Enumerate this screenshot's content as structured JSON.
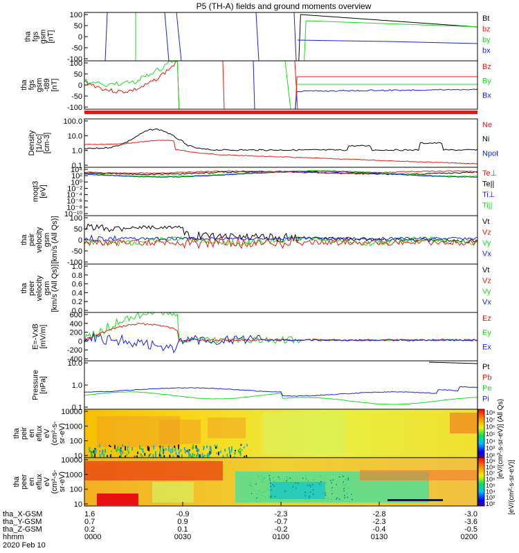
{
  "title": "P5 (TH-A) fields and ground moments overview",
  "date_label": "2020 Feb 10",
  "colors": {
    "black": "#000000",
    "red": "#e8160c",
    "green": "#14dc14",
    "blue": "#1420dc"
  },
  "chart_data": [
    {
      "id": "fgs",
      "type": "line",
      "ylabel": [
        "tha",
        "fgs",
        "gsm",
        "[nT]"
      ],
      "yticks": [
        "100",
        "50",
        "0",
        "-50",
        "-100"
      ],
      "ylim": [
        -100,
        100
      ],
      "legend": [
        {
          "label": "Bt",
          "color": "black"
        },
        {
          "label": "bz",
          "color": "red"
        },
        {
          "label": "by",
          "color": "green"
        },
        {
          "label": "bx",
          "color": "blue"
        }
      ]
    },
    {
      "id": "fgs_dsl",
      "type": "line",
      "ylabel": [
        "tha",
        "fgs",
        "gsm",
        "-t89",
        "[nT]"
      ],
      "yticks": [
        "100",
        "50",
        "0",
        "-50",
        "-100"
      ],
      "ylim": [
        -100,
        100
      ],
      "legend": [
        {
          "label": "Bz",
          "color": "red"
        },
        {
          "label": "By",
          "color": "green"
        },
        {
          "label": "Bx",
          "color": "blue"
        }
      ]
    },
    {
      "id": "density",
      "type": "line",
      "ylabel": [
        "Density",
        "[1/cc]",
        "[cm-3]"
      ],
      "yticks": [
        "100.0",
        "10.0",
        "1.0",
        "0.1"
      ],
      "legend": [
        {
          "label": "Ne",
          "color": "red"
        },
        {
          "label": "Ni",
          "color": "black"
        },
        {
          "label": "Npot",
          "color": "blue"
        }
      ]
    },
    {
      "id": "temp",
      "type": "line",
      "ylabel": [
        "moqt3",
        "[eV]"
      ],
      "yticks": [
        "10⁴",
        "10²",
        "10⁰",
        "10⁻²",
        "10⁻⁴",
        "10⁻⁶",
        "10⁻⁸",
        "10⁻¹⁰"
      ],
      "legend": [
        {
          "label": "Te⊥",
          "color": "red"
        },
        {
          "label": "Te||",
          "color": "black"
        },
        {
          "label": "Ti⊥",
          "color": "blue"
        },
        {
          "label": "Ti||",
          "color": "green"
        }
      ]
    },
    {
      "id": "vi",
      "type": "line",
      "ylabel": [
        "tha",
        "peir",
        "velocity",
        "gsm",
        "[km/s (All Qs)]"
      ],
      "yticks": [
        "100",
        "50",
        "0",
        "-50",
        "-100"
      ],
      "ylim": [
        -100,
        100
      ],
      "legend": [
        {
          "label": "Vt",
          "color": "black"
        },
        {
          "label": "Vz",
          "color": "red"
        },
        {
          "label": "Vy",
          "color": "green"
        },
        {
          "label": "Vx",
          "color": "blue"
        }
      ]
    },
    {
      "id": "ve",
      "type": "line",
      "ylabel": [
        "tha",
        "peer",
        "velocity",
        "gsm",
        "[km/s (All Qs)]"
      ],
      "yticks": [
        "1.0",
        "0.8",
        "0.6",
        "0.4",
        "0.2",
        "0.0"
      ],
      "ylim": [
        0,
        1
      ],
      "legend": [
        {
          "label": "Vt",
          "color": "black"
        },
        {
          "label": "Vz",
          "color": "red"
        },
        {
          "label": "Vy",
          "color": "green"
        },
        {
          "label": "Vx",
          "color": "blue"
        }
      ]
    },
    {
      "id": "efield",
      "type": "line",
      "ylabel": [
        "E=-VxB",
        "[mV/m]"
      ],
      "yticks": [
        "600",
        "400",
        "200",
        "0",
        "-200",
        "-400"
      ],
      "ylim": [
        -450,
        600
      ],
      "legend": [
        {
          "label": "Ez",
          "color": "red"
        },
        {
          "label": "Ey",
          "color": "green"
        },
        {
          "label": "Ex",
          "color": "blue"
        }
      ]
    },
    {
      "id": "pressure",
      "type": "line",
      "ylabel": [
        "Pressure",
        "[nPa]"
      ],
      "yticks": [
        "10.0",
        "1.0",
        "0.1"
      ],
      "legend": [
        {
          "label": "Pt",
          "color": "black"
        },
        {
          "label": "Pb",
          "color": "red"
        },
        {
          "label": "Pe",
          "color": "green"
        },
        {
          "label": "Pi",
          "color": "blue"
        }
      ]
    },
    {
      "id": "ion_spec",
      "type": "heatmap",
      "ylabel": [
        "tha",
        "peir",
        "en",
        "eflux",
        "eV",
        "(cm²-s-",
        "sr-eV)"
      ],
      "yticks": [
        "10000",
        "1000",
        "100",
        "10"
      ],
      "colorbar_label": "[eV/(cm²-s-sr-eV)] (All Qs)",
      "colorbar_ticks": [
        "10⁸",
        "10⁷",
        "10⁶",
        "10⁵",
        "10⁴",
        "10³",
        "10²"
      ]
    },
    {
      "id": "elec_spec",
      "type": "heatmap",
      "ylabel": [
        "tha",
        "peer",
        "en",
        "eflux",
        "eV",
        "(cm²-s-",
        "sr-eV)"
      ],
      "yticks": [
        "10000",
        "1000",
        "100",
        "10"
      ],
      "colorbar_label": "[eV/(cm²-s-sr-eV)]",
      "colorbar_ticks": [
        "10⁹",
        "10⁸",
        "10⁷",
        "10⁶",
        "10⁵",
        "10⁴",
        "10³",
        "10²"
      ]
    }
  ],
  "x_axis": {
    "row_labels": [
      "tha_X-GSM",
      "tha_Y-GSM",
      "tha_Z-GSM",
      "hhmm"
    ],
    "ticks": [
      [
        "1.6",
        "0.7",
        "0.2",
        "0000"
      ],
      [
        "-0.9",
        "0.9",
        "0.1",
        "0030"
      ],
      [
        "-2.3",
        "-0.7",
        "-0.2",
        "0100"
      ],
      [
        "-2.8",
        "-2.3",
        "-0.4",
        "0130"
      ],
      [
        "-3.0",
        "-3.6",
        "-0.5",
        "0200"
      ]
    ]
  }
}
